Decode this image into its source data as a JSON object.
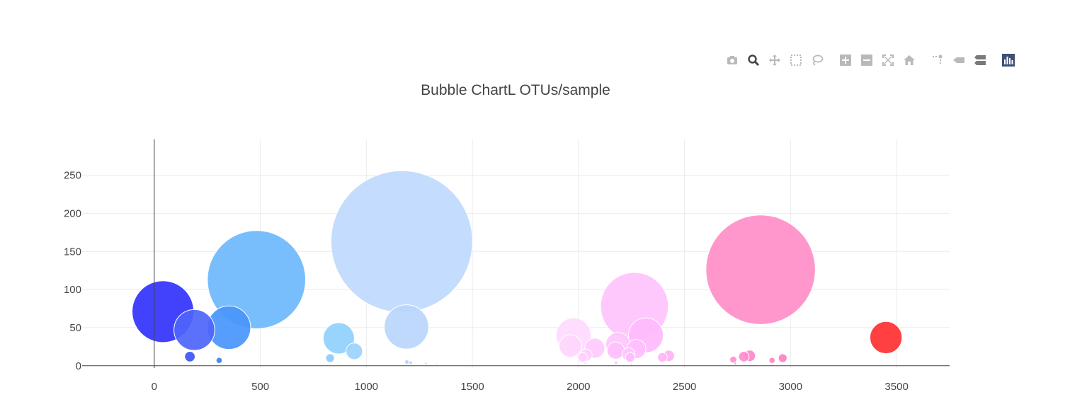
{
  "modebar": {
    "buttons": [
      {
        "name": "camera-icon",
        "label": "Download plot as a png",
        "color": "#b9b9b9"
      },
      {
        "name": "zoom-icon",
        "label": "Zoom",
        "color": "#444444"
      },
      {
        "name": "pan-icon",
        "label": "Pan",
        "color": "#b9b9b9"
      },
      {
        "name": "box-select-icon",
        "label": "Box Select",
        "color": "#b9b9b9"
      },
      {
        "name": "lasso-select-icon",
        "label": "Lasso Select",
        "color": "#b9b9b9"
      },
      {
        "name": "zoom-in-icon",
        "label": "Zoom in",
        "color": "#b9b9b9"
      },
      {
        "name": "zoom-out-icon",
        "label": "Zoom out",
        "color": "#b9b9b9"
      },
      {
        "name": "autoscale-icon",
        "label": "Autoscale",
        "color": "#b9b9b9"
      },
      {
        "name": "home-icon",
        "label": "Reset axes",
        "color": "#b9b9b9"
      },
      {
        "name": "spike-lines-icon",
        "label": "Toggle Spike Lines",
        "color": "#b9b9b9"
      },
      {
        "name": "hover-closest-icon",
        "label": "Show closest data on hover",
        "color": "#b9b9b9"
      },
      {
        "name": "hover-compare-icon",
        "label": "Compare data on hover",
        "color": "#7a7a7a"
      },
      {
        "name": "plotly-logo-icon",
        "label": "Produced with Plotly",
        "color": "#3f4f75"
      }
    ]
  },
  "chart_data": {
    "type": "scatter",
    "title": "Bubble ChartL OTUs/sample",
    "xlabel": "",
    "ylabel": "",
    "xlim": [
      -340,
      3750
    ],
    "ylim": [
      -3,
      297
    ],
    "xticks": [
      0,
      500,
      1000,
      1500,
      2000,
      2500,
      3000,
      3500
    ],
    "yticks": [
      0,
      50,
      100,
      150,
      200,
      250
    ],
    "grid": true,
    "legend": "none",
    "points": [
      {
        "x": 1167,
        "y": 163,
        "size": 163,
        "color": "#bfd9fd"
      },
      {
        "x": 2859,
        "y": 126,
        "size": 126,
        "color": "#ff8ec8"
      },
      {
        "x": 482,
        "y": 113,
        "size": 113,
        "color": "#6cb8fc"
      },
      {
        "x": 2264,
        "y": 78,
        "size": 78,
        "color": "#ffc3fd"
      },
      {
        "x": 41,
        "y": 71,
        "size": 71,
        "color": "#3232fd"
      },
      {
        "x": 1189,
        "y": 51,
        "size": 51,
        "color": "#b8d6fb"
      },
      {
        "x": 352,
        "y": 50,
        "size": 50,
        "color": "#4995fb"
      },
      {
        "x": 189,
        "y": 47,
        "size": 47,
        "color": "#4e65fb"
      },
      {
        "x": 1977,
        "y": 40,
        "size": 40,
        "color": "#ffdaff"
      },
      {
        "x": 2318,
        "y": 40,
        "size": 40,
        "color": "#ffbafd"
      },
      {
        "x": 3450,
        "y": 37,
        "size": 37,
        "color": "#ff3030"
      },
      {
        "x": 870,
        "y": 36,
        "size": 36,
        "color": "#90d0fd"
      },
      {
        "x": 2186,
        "y": 28,
        "size": 28,
        "color": "#ffc4fd"
      },
      {
        "x": 1962,
        "y": 26,
        "size": 26,
        "color": "#ffd6fd"
      },
      {
        "x": 2077,
        "y": 23,
        "size": 23,
        "color": "#ffcafd"
      },
      {
        "x": 2273,
        "y": 22,
        "size": 22,
        "color": "#ffbefd"
      },
      {
        "x": 2176,
        "y": 20,
        "size": 20,
        "color": "#ffc0fd"
      },
      {
        "x": 943,
        "y": 19,
        "size": 19,
        "color": "#9cd2fd"
      },
      {
        "x": 2036,
        "y": 14,
        "size": 14,
        "color": "#ffcefd"
      },
      {
        "x": 2236,
        "y": 15,
        "size": 15,
        "color": "#ffc6fd"
      },
      {
        "x": 2426,
        "y": 13,
        "size": 13,
        "color": "#ffb4f2"
      },
      {
        "x": 2808,
        "y": 13,
        "size": 13,
        "color": "#fc89cf"
      },
      {
        "x": 168,
        "y": 12,
        "size": 12,
        "color": "#3c55f5"
      },
      {
        "x": 2780,
        "y": 12,
        "size": 12,
        "color": "#ff8ccf"
      },
      {
        "x": 2244,
        "y": 11,
        "size": 11,
        "color": "#ffbcfd"
      },
      {
        "x": 2396,
        "y": 11,
        "size": 11,
        "color": "#ffb4f6"
      },
      {
        "x": 2019,
        "y": 11,
        "size": 11,
        "color": "#ffd0fd"
      },
      {
        "x": 2963,
        "y": 10,
        "size": 10,
        "color": "#ff80c0"
      },
      {
        "x": 829,
        "y": 10,
        "size": 10,
        "color": "#8cccfd"
      },
      {
        "x": 2730,
        "y": 8,
        "size": 8,
        "color": "#ff90d0"
      },
      {
        "x": 2913,
        "y": 7,
        "size": 7,
        "color": "#ff84c4"
      },
      {
        "x": 306,
        "y": 7,
        "size": 7,
        "color": "#3f7ff0"
      },
      {
        "x": 1191,
        "y": 5,
        "size": 5,
        "color": "#b3d3fb"
      },
      {
        "x": 1209,
        "y": 4,
        "size": 4,
        "color": "#b6d5fb"
      },
      {
        "x": 2177,
        "y": 4,
        "size": 4,
        "color": "#ffc2fd"
      },
      {
        "x": 1280,
        "y": 3,
        "size": 3,
        "color": "#c2dbfb"
      },
      {
        "x": 2740,
        "y": 3,
        "size": 3,
        "color": "#ff8ecf"
      },
      {
        "x": 1332,
        "y": 2,
        "size": 2,
        "color": "#c6ddfb"
      },
      {
        "x": 2033,
        "y": 3,
        "size": 3,
        "color": "#ffcffd"
      },
      {
        "x": 2250,
        "y": 2,
        "size": 2,
        "color": "#ffc2fd"
      }
    ]
  }
}
